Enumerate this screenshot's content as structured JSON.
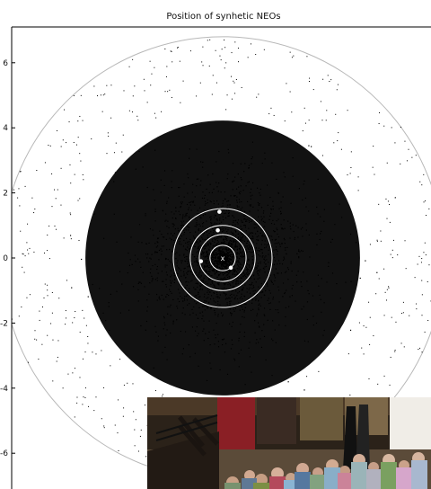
{
  "chart_data": {
    "type": "scatter",
    "title": "Position of synhetic NEOs",
    "xlabel": "",
    "ylabel": "",
    "xlim": [
      -6.8,
      6.8
    ],
    "ylim": [
      -6.8,
      6.8
    ],
    "y_ticks": [
      6,
      4,
      2,
      0,
      -2,
      -4,
      -6
    ],
    "y_tick_labels": [
      "6",
      "4",
      "2",
      "0",
      "-2",
      "-4",
      "-6"
    ],
    "grid": false,
    "scatter_distribution": {
      "center": [
        0,
        0
      ],
      "dense_radius": 4.4,
      "sparse_radius": 6.8,
      "point_color": "#000000"
    },
    "orbits": [
      {
        "radius": 0.39
      },
      {
        "radius": 0.72
      },
      {
        "radius": 1.0
      },
      {
        "radius": 1.52
      }
    ],
    "planets": [
      {
        "x": 0.25,
        "y": -0.3
      },
      {
        "x": -0.67,
        "y": -0.1
      },
      {
        "x": -0.15,
        "y": 0.85
      },
      {
        "x": -0.1,
        "y": 1.42
      }
    ],
    "sun_marker": {
      "x": 0,
      "y": 0,
      "label": "x"
    },
    "colors": {
      "orbit_line": "#ffffff",
      "planet_fill": "#ffffff",
      "boundary_line": "#b8b8b8",
      "axis": "#000000"
    }
  },
  "overlay": {
    "photo_icon": "group-photo-icon"
  }
}
